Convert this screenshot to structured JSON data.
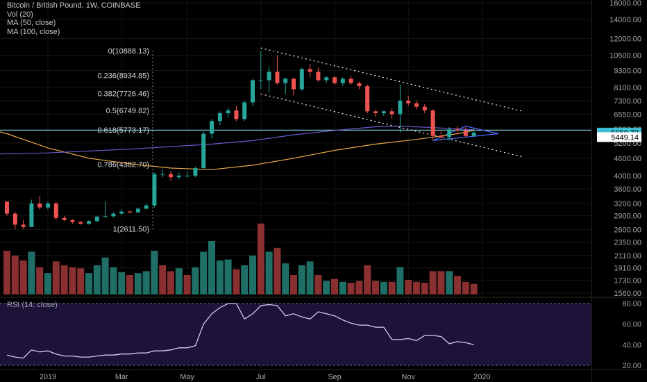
{
  "legend": {
    "title": "Bitcoin / British Pound, 1W, COINBASE",
    "vol": "Vol (20)",
    "ma50": "MA (50, close)",
    "ma100": "MA (100, close)"
  },
  "rsi_title": "RSI (14, close)",
  "chart_data": [
    {
      "type": "candlestick",
      "symbol": "BTCGBP",
      "interval": "1W",
      "exchange": "COINBASE",
      "y_axis_ticks": [
        "16000.00",
        "14000.00",
        "12000.00",
        "10500.00",
        "9300.00",
        "8100.00",
        "7300.00",
        "6550.00",
        "5800.00",
        "5200.00",
        "4600.00",
        "4000.00",
        "3600.00",
        "3200.00",
        "2900.00",
        "2600.00",
        "2350.00",
        "2110.00",
        "1910.00",
        "1730.00",
        "1560.00"
      ],
      "y_scale": "log",
      "x_axis_ticks": [
        "2019",
        "Mar",
        "May",
        "Jul",
        "Sep",
        "Nov",
        "2020"
      ],
      "price_labels": [
        {
          "text": "5650.72",
          "value": 5650.72,
          "color": "#3bbdd4"
        },
        {
          "text": "5449.14",
          "value": 5449.14,
          "color": "#ffffff"
        }
      ],
      "fibonacci": [
        {
          "text": "0(10888.13)",
          "value": 10888.13
        },
        {
          "text": "0.236(8934.85)",
          "value": 8934.85
        },
        {
          "text": "0.382(7726.46)",
          "value": 7726.46
        },
        {
          "text": "0.5(6749.82)",
          "value": 6749.82
        },
        {
          "text": "0.618(5773.17)",
          "value": 5773.17
        },
        {
          "text": "0.786(4382.70)",
          "value": 4382.7
        },
        {
          "text": "1(2611.50)",
          "value": 2611.5
        }
      ],
      "candles": [
        {
          "o": 3250,
          "h": 3250,
          "l": 2900,
          "c": 2950
        },
        {
          "o": 2950,
          "h": 3000,
          "l": 2600,
          "c": 2700
        },
        {
          "o": 2700,
          "h": 2800,
          "l": 2600,
          "c": 2650
        },
        {
          "o": 2650,
          "h": 3300,
          "l": 2650,
          "c": 3200
        },
        {
          "o": 3200,
          "h": 3400,
          "l": 3050,
          "c": 3100
        },
        {
          "o": 3100,
          "h": 3250,
          "l": 3050,
          "c": 3200
        },
        {
          "o": 3200,
          "h": 3250,
          "l": 2800,
          "c": 2850
        },
        {
          "o": 2850,
          "h": 2900,
          "l": 2780,
          "c": 2800
        },
        {
          "o": 2800,
          "h": 2820,
          "l": 2720,
          "c": 2760
        },
        {
          "o": 2760,
          "h": 2780,
          "l": 2700,
          "c": 2720
        },
        {
          "o": 2720,
          "h": 2800,
          "l": 2700,
          "c": 2780
        },
        {
          "o": 2780,
          "h": 2900,
          "l": 2750,
          "c": 2880
        },
        {
          "o": 2880,
          "h": 3250,
          "l": 2850,
          "c": 2890
        },
        {
          "o": 2890,
          "h": 2980,
          "l": 2860,
          "c": 2950
        },
        {
          "o": 2950,
          "h": 3050,
          "l": 2920,
          "c": 3000
        },
        {
          "o": 3000,
          "h": 3020,
          "l": 2960,
          "c": 2980
        },
        {
          "o": 2980,
          "h": 3100,
          "l": 2970,
          "c": 3070
        },
        {
          "o": 3070,
          "h": 3200,
          "l": 3050,
          "c": 3150
        },
        {
          "o": 3150,
          "h": 4100,
          "l": 3100,
          "c": 4050
        },
        {
          "o": 4050,
          "h": 4200,
          "l": 3950,
          "c": 4050
        },
        {
          "o": 4050,
          "h": 4150,
          "l": 3850,
          "c": 3950
        },
        {
          "o": 3950,
          "h": 4100,
          "l": 3880,
          "c": 4000
        },
        {
          "o": 4000,
          "h": 4150,
          "l": 3950,
          "c": 4000
        },
        {
          "o": 4000,
          "h": 4300,
          "l": 3950,
          "c": 4250
        },
        {
          "o": 4250,
          "h": 5700,
          "l": 4200,
          "c": 5600
        },
        {
          "o": 5600,
          "h": 6300,
          "l": 5400,
          "c": 6200
        },
        {
          "o": 6200,
          "h": 6700,
          "l": 6000,
          "c": 6600
        },
        {
          "o": 6600,
          "h": 6900,
          "l": 6400,
          "c": 6750
        },
        {
          "o": 6750,
          "h": 7000,
          "l": 6200,
          "c": 6300
        },
        {
          "o": 6300,
          "h": 7300,
          "l": 6200,
          "c": 7200
        },
        {
          "o": 7200,
          "h": 8700,
          "l": 7000,
          "c": 8600
        },
        {
          "o": 8600,
          "h": 10888,
          "l": 8000,
          "c": 8600
        },
        {
          "o": 8600,
          "h": 9600,
          "l": 7800,
          "c": 9200
        },
        {
          "o": 9200,
          "h": 10500,
          "l": 8300,
          "c": 8400
        },
        {
          "o": 8400,
          "h": 8800,
          "l": 7700,
          "c": 8700
        },
        {
          "o": 8700,
          "h": 8800,
          "l": 7600,
          "c": 8000
        },
        {
          "o": 8000,
          "h": 9500,
          "l": 7900,
          "c": 9400
        },
        {
          "o": 9400,
          "h": 9800,
          "l": 8800,
          "c": 9200
        },
        {
          "o": 9200,
          "h": 9500,
          "l": 8500,
          "c": 8600
        },
        {
          "o": 8600,
          "h": 8900,
          "l": 8400,
          "c": 8800
        },
        {
          "o": 8800,
          "h": 8900,
          "l": 8300,
          "c": 8400
        },
        {
          "o": 8400,
          "h": 8800,
          "l": 8200,
          "c": 8700
        },
        {
          "o": 8700,
          "h": 8900,
          "l": 8300,
          "c": 8400
        },
        {
          "o": 8400,
          "h": 8500,
          "l": 8000,
          "c": 8200
        },
        {
          "o": 8200,
          "h": 8300,
          "l": 6600,
          "c": 6700
        },
        {
          "o": 6700,
          "h": 6800,
          "l": 6400,
          "c": 6600
        },
        {
          "o": 6600,
          "h": 6750,
          "l": 6450,
          "c": 6700
        },
        {
          "o": 6700,
          "h": 6850,
          "l": 6300,
          "c": 6550
        },
        {
          "o": 6550,
          "h": 8300,
          "l": 5650,
          "c": 7300
        },
        {
          "o": 7300,
          "h": 7600,
          "l": 7000,
          "c": 7150
        },
        {
          "o": 7150,
          "h": 7300,
          "l": 6800,
          "c": 6950
        },
        {
          "o": 6950,
          "h": 7100,
          "l": 6600,
          "c": 6750
        },
        {
          "o": 6750,
          "h": 6800,
          "l": 5300,
          "c": 5500
        },
        {
          "o": 5500,
          "h": 5700,
          "l": 5300,
          "c": 5450
        },
        {
          "o": 5450,
          "h": 5900,
          "l": 5300,
          "c": 5800
        },
        {
          "o": 5800,
          "h": 5950,
          "l": 5600,
          "c": 5750
        },
        {
          "o": 5750,
          "h": 5900,
          "l": 5450,
          "c": 5500
        },
        {
          "o": 5500,
          "h": 5850,
          "l": 5450,
          "c": 5650
        }
      ],
      "ma50": [
        {
          "i": -3,
          "v": 5900
        },
        {
          "i": 0,
          "v": 5600
        },
        {
          "i": 5,
          "v": 5000
        },
        {
          "i": 10,
          "v": 4600
        },
        {
          "i": 15,
          "v": 4400
        },
        {
          "i": 20,
          "v": 4250
        },
        {
          "i": 25,
          "v": 4200
        },
        {
          "i": 30,
          "v": 4350
        },
        {
          "i": 35,
          "v": 4600
        },
        {
          "i": 40,
          "v": 4900
        },
        {
          "i": 45,
          "v": 5150
        },
        {
          "i": 50,
          "v": 5350
        },
        {
          "i": 55,
          "v": 5600
        },
        {
          "i": 57,
          "v": 5750
        }
      ],
      "ma100": [
        {
          "i": -3,
          "v": 4750
        },
        {
          "i": 5,
          "v": 4800
        },
        {
          "i": 15,
          "v": 4950
        },
        {
          "i": 20,
          "v": 5050
        },
        {
          "i": 25,
          "v": 5150
        },
        {
          "i": 30,
          "v": 5300
        },
        {
          "i": 35,
          "v": 5550
        },
        {
          "i": 40,
          "v": 5750
        },
        {
          "i": 45,
          "v": 5920
        },
        {
          "i": 48,
          "v": 5950
        },
        {
          "i": 52,
          "v": 5880
        },
        {
          "i": 57,
          "v": 5780
        }
      ],
      "volume": [
        {
          "v": 0.45,
          "up": false
        },
        {
          "v": 0.4,
          "up": false
        },
        {
          "v": 0.35,
          "up": false
        },
        {
          "v": 0.44,
          "up": true
        },
        {
          "v": 0.28,
          "up": false
        },
        {
          "v": 0.22,
          "up": true
        },
        {
          "v": 0.34,
          "up": false
        },
        {
          "v": 0.3,
          "up": false
        },
        {
          "v": 0.28,
          "up": false
        },
        {
          "v": 0.27,
          "up": false
        },
        {
          "v": 0.22,
          "up": true
        },
        {
          "v": 0.3,
          "up": true
        },
        {
          "v": 0.38,
          "up": true
        },
        {
          "v": 0.28,
          "up": true
        },
        {
          "v": 0.23,
          "up": true
        },
        {
          "v": 0.2,
          "up": false
        },
        {
          "v": 0.22,
          "up": true
        },
        {
          "v": 0.24,
          "up": true
        },
        {
          "v": 0.45,
          "up": true
        },
        {
          "v": 0.3,
          "up": false
        },
        {
          "v": 0.24,
          "up": false
        },
        {
          "v": 0.27,
          "up": true
        },
        {
          "v": 0.2,
          "up": false
        },
        {
          "v": 0.28,
          "up": true
        },
        {
          "v": 0.44,
          "up": true
        },
        {
          "v": 0.55,
          "up": true
        },
        {
          "v": 0.35,
          "up": true
        },
        {
          "v": 0.36,
          "up": true
        },
        {
          "v": 0.26,
          "up": false
        },
        {
          "v": 0.3,
          "up": true
        },
        {
          "v": 0.4,
          "up": true
        },
        {
          "v": 0.73,
          "up": false
        },
        {
          "v": 0.44,
          "up": true
        },
        {
          "v": 0.48,
          "up": false
        },
        {
          "v": 0.32,
          "up": true
        },
        {
          "v": 0.2,
          "up": false
        },
        {
          "v": 0.3,
          "up": true
        },
        {
          "v": 0.34,
          "up": true
        },
        {
          "v": 0.2,
          "up": false
        },
        {
          "v": 0.14,
          "up": true
        },
        {
          "v": 0.16,
          "up": false
        },
        {
          "v": 0.13,
          "up": true
        },
        {
          "v": 0.12,
          "up": false
        },
        {
          "v": 0.14,
          "up": false
        },
        {
          "v": 0.3,
          "up": false
        },
        {
          "v": 0.14,
          "up": false
        },
        {
          "v": 0.13,
          "up": true
        },
        {
          "v": 0.13,
          "up": false
        },
        {
          "v": 0.28,
          "up": true
        },
        {
          "v": 0.15,
          "up": false
        },
        {
          "v": 0.13,
          "up": false
        },
        {
          "v": 0.12,
          "up": false
        },
        {
          "v": 0.24,
          "up": false
        },
        {
          "v": 0.24,
          "up": false
        },
        {
          "v": 0.24,
          "up": true
        },
        {
          "v": 0.19,
          "up": false
        },
        {
          "v": 0.13,
          "up": false
        },
        {
          "v": 0.11,
          "up": false
        }
      ],
      "rsi": {
        "ticks": [
          "80.00",
          "60.00",
          "40.00",
          "20.00"
        ],
        "values": [
          30,
          28,
          27,
          35,
          33,
          34,
          31,
          29,
          29,
          28,
          28,
          29,
          30,
          30,
          31,
          31,
          32,
          32,
          34,
          34,
          35,
          37,
          37,
          39,
          60,
          70,
          76,
          80,
          80,
          65,
          70,
          78,
          79,
          78,
          68,
          70,
          67,
          65,
          72,
          70,
          68,
          64,
          61,
          59,
          59,
          57,
          57,
          45,
          45,
          46,
          44,
          49,
          49,
          48,
          41,
          43,
          42,
          40
        ]
      }
    }
  ]
}
